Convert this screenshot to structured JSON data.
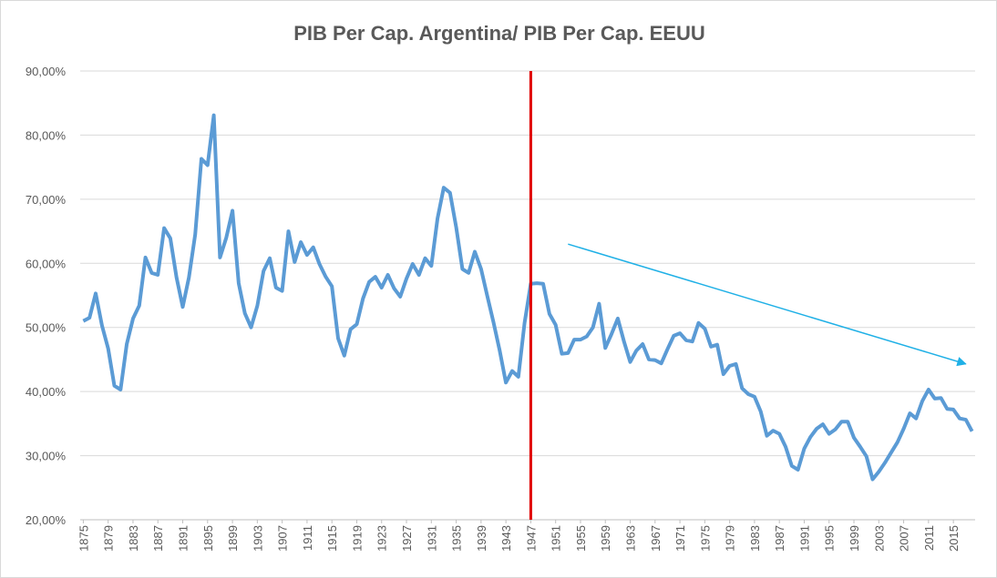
{
  "chart_data": {
    "type": "line",
    "title": "PIB Per Cap. Argentina/ PIB Per Cap. EEUU",
    "x": [
      1875,
      1876,
      1877,
      1878,
      1879,
      1880,
      1881,
      1882,
      1883,
      1884,
      1885,
      1886,
      1887,
      1888,
      1889,
      1890,
      1891,
      1892,
      1893,
      1894,
      1895,
      1896,
      1897,
      1898,
      1899,
      1900,
      1901,
      1902,
      1903,
      1904,
      1905,
      1906,
      1907,
      1908,
      1909,
      1910,
      1911,
      1912,
      1913,
      1914,
      1915,
      1916,
      1917,
      1918,
      1919,
      1920,
      1921,
      1922,
      1923,
      1924,
      1925,
      1926,
      1927,
      1928,
      1929,
      1930,
      1931,
      1932,
      1933,
      1934,
      1935,
      1936,
      1937,
      1938,
      1939,
      1940,
      1941,
      1942,
      1943,
      1944,
      1945,
      1946,
      1947,
      1948,
      1949,
      1950,
      1951,
      1952,
      1953,
      1954,
      1955,
      1956,
      1957,
      1958,
      1959,
      1960,
      1961,
      1962,
      1963,
      1964,
      1965,
      1966,
      1967,
      1968,
      1969,
      1970,
      1971,
      1972,
      1973,
      1974,
      1975,
      1976,
      1977,
      1978,
      1979,
      1980,
      1981,
      1982,
      1983,
      1984,
      1985,
      1986,
      1987,
      1988,
      1989,
      1990,
      1991,
      1992,
      1993,
      1994,
      1995,
      1996,
      1997,
      1998,
      1999,
      2000,
      2001,
      2002,
      2003,
      2004,
      2005,
      2006,
      2007,
      2008,
      2009,
      2010,
      2011,
      2012,
      2013,
      2014,
      2015,
      2016,
      2017,
      2018
    ],
    "series": [
      {
        "color": "#5b9bd5",
        "values": [
          51.0,
          51.5,
          55.3,
          50.3,
          46.7,
          40.9,
          40.3,
          47.4,
          51.4,
          53.4,
          60.9,
          58.5,
          58.2,
          65.5,
          63.9,
          57.8,
          53.2,
          57.8,
          64.5,
          76.3,
          75.3,
          83.1,
          60.9,
          64.0,
          68.2,
          56.9,
          52.2,
          50.0,
          53.4,
          58.8,
          60.8,
          56.2,
          55.7,
          65.0,
          60.2,
          63.3,
          61.3,
          62.5,
          59.9,
          57.9,
          56.4,
          48.3,
          45.6,
          49.7,
          50.5,
          54.5,
          57.1,
          57.9,
          56.2,
          58.2,
          56.1,
          54.8,
          57.6,
          59.9,
          58.2,
          60.8,
          59.6,
          67.0,
          71.8,
          71.0,
          65.6,
          59.1,
          58.5,
          61.8,
          59.1,
          54.9,
          50.8,
          46.4,
          41.4,
          43.2,
          42.3,
          50.7,
          56.8,
          56.9,
          56.8,
          52.1,
          50.4,
          45.9,
          46.0,
          48.1,
          48.1,
          48.6,
          50.0,
          53.7,
          46.8,
          49.0,
          51.4,
          47.8,
          44.6,
          46.4,
          47.4,
          45.0,
          44.9,
          44.4,
          46.6,
          48.7,
          49.1,
          48.0,
          47.8,
          50.7,
          49.8,
          47.0,
          47.3,
          42.7,
          44.0,
          44.3,
          40.5,
          39.6,
          39.2,
          36.9,
          33.1,
          33.9,
          33.4,
          31.4,
          28.4,
          27.8,
          31.1,
          32.9,
          34.2,
          34.9,
          33.4,
          34.1,
          35.3,
          35.3,
          32.8,
          31.4,
          29.9,
          26.3,
          27.5,
          28.9,
          30.5,
          32.1,
          34.2,
          36.6,
          35.8,
          38.5,
          40.3,
          38.9,
          39.0,
          37.3,
          37.2,
          35.8,
          35.6,
          33.8
        ]
      }
    ],
    "xlim": [
      1874.5,
      2018.5
    ],
    "xticks": [
      1875,
      1879,
      1883,
      1887,
      1891,
      1895,
      1899,
      1903,
      1907,
      1911,
      1915,
      1919,
      1923,
      1927,
      1931,
      1935,
      1939,
      1943,
      1947,
      1951,
      1955,
      1959,
      1963,
      1967,
      1971,
      1975,
      1979,
      1983,
      1987,
      1991,
      1995,
      1999,
      2003,
      2007,
      2011,
      2015
    ],
    "ylim": [
      20,
      90
    ],
    "yticks": [
      {
        "value": 20,
        "label": "20,00%"
      },
      {
        "value": 30,
        "label": "30,00%"
      },
      {
        "value": 40,
        "label": "40,00%"
      },
      {
        "value": 50,
        "label": "50,00%"
      },
      {
        "value": 60,
        "label": "60,00%"
      },
      {
        "value": 70,
        "label": "70,00%"
      },
      {
        "value": 80,
        "label": "80,00%"
      },
      {
        "value": 90,
        "label": "90,00%"
      }
    ],
    "grid": true,
    "vline": {
      "x": 1947,
      "color": "#e00000"
    },
    "arrow": {
      "x": [
        1953,
        2017
      ],
      "y": [
        63,
        44.3
      ],
      "color": "#1fb0e6"
    }
  }
}
